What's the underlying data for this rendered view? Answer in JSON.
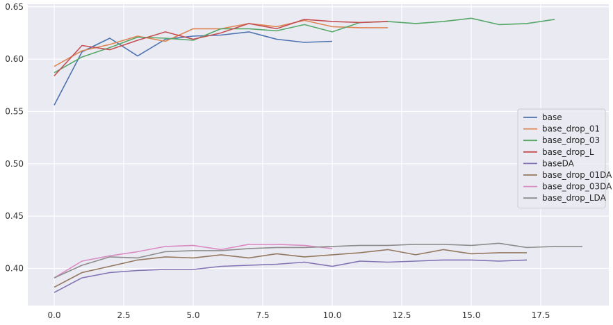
{
  "chart_data": {
    "type": "line",
    "title": "",
    "xlabel": "",
    "ylabel": "",
    "xlim": [
      -0.95,
      19.95
    ],
    "ylim": [
      0.3645,
      0.6525
    ],
    "xticks": [
      0.0,
      2.5,
      5.0,
      7.5,
      10.0,
      12.5,
      15.0,
      17.5
    ],
    "xtick_labels": [
      "0.0",
      "2.5",
      "5.0",
      "7.5",
      "10.0",
      "12.5",
      "15.0",
      "17.5"
    ],
    "yticks": [
      0.4,
      0.45,
      0.5,
      0.55,
      0.6,
      0.65
    ],
    "ytick_labels": [
      "0.40",
      "0.45",
      "0.50",
      "0.55",
      "0.60",
      "0.65"
    ],
    "grid": true,
    "legend_position": "center-right",
    "background": "#eaeaf2",
    "series": [
      {
        "name": "base",
        "color": "#4c72b0",
        "x": [
          0,
          1,
          2,
          3,
          4,
          5,
          6,
          7,
          8,
          9,
          10
        ],
        "y": [
          0.556,
          0.607,
          0.62,
          0.603,
          0.619,
          0.622,
          0.623,
          0.626,
          0.619,
          0.616,
          0.617
        ]
      },
      {
        "name": "base_drop_01",
        "color": "#dd8452",
        "x": [
          0,
          1,
          2,
          3,
          4,
          5,
          6,
          7,
          8,
          9,
          10,
          11,
          12
        ],
        "y": [
          0.593,
          0.608,
          0.614,
          0.622,
          0.617,
          0.629,
          0.629,
          0.634,
          0.631,
          0.637,
          0.631,
          0.63,
          0.63
        ]
      },
      {
        "name": "base_drop_03",
        "color": "#55a868",
        "x": [
          0,
          1,
          2,
          3,
          4,
          5,
          6,
          7,
          8,
          9,
          10,
          11,
          12,
          13,
          14,
          15,
          16,
          17,
          18
        ],
        "y": [
          0.587,
          0.602,
          0.611,
          0.621,
          0.62,
          0.618,
          0.629,
          0.629,
          0.627,
          0.633,
          0.626,
          0.635,
          0.636,
          0.634,
          0.636,
          0.639,
          0.633,
          0.634,
          0.638
        ]
      },
      {
        "name": "base_drop_L",
        "color": "#c44e52",
        "x": [
          0,
          1,
          2,
          3,
          4,
          5,
          6,
          7,
          8,
          9,
          10,
          11,
          12
        ],
        "y": [
          0.584,
          0.613,
          0.609,
          0.618,
          0.626,
          0.619,
          0.625,
          0.634,
          0.629,
          0.638,
          0.636,
          0.635,
          0.636
        ]
      },
      {
        "name": "baseDA",
        "color": "#8172b3",
        "x": [
          0,
          1,
          2,
          3,
          4,
          5,
          6,
          7,
          8,
          9,
          10,
          11,
          12,
          13,
          14,
          15,
          16,
          17
        ],
        "y": [
          0.377,
          0.391,
          0.396,
          0.398,
          0.399,
          0.399,
          0.402,
          0.403,
          0.404,
          0.406,
          0.402,
          0.407,
          0.406,
          0.407,
          0.408,
          0.408,
          0.407,
          0.408
        ]
      },
      {
        "name": "base_drop_01DA",
        "color": "#937860",
        "x": [
          0,
          1,
          2,
          3,
          4,
          5,
          6,
          7,
          8,
          9,
          10,
          11,
          12,
          13,
          14,
          15,
          16,
          17
        ],
        "y": [
          0.382,
          0.396,
          0.402,
          0.408,
          0.411,
          0.41,
          0.413,
          0.41,
          0.414,
          0.411,
          0.413,
          0.415,
          0.418,
          0.413,
          0.418,
          0.414,
          0.415,
          0.415
        ]
      },
      {
        "name": "base_drop_03DA",
        "color": "#da8bc3",
        "x": [
          0,
          1,
          2,
          3,
          4,
          5,
          6,
          7,
          8,
          9,
          10
        ],
        "y": [
          0.391,
          0.407,
          0.412,
          0.416,
          0.421,
          0.422,
          0.418,
          0.423,
          0.423,
          0.422,
          0.419
        ]
      },
      {
        "name": "base_drop_LDA",
        "color": "#8c8c8c",
        "x": [
          0,
          1,
          2,
          3,
          4,
          5,
          6,
          7,
          8,
          9,
          10,
          11,
          12,
          13,
          14,
          15,
          16,
          17,
          18,
          19
        ],
        "y": [
          0.391,
          0.403,
          0.411,
          0.41,
          0.416,
          0.417,
          0.417,
          0.419,
          0.42,
          0.42,
          0.421,
          0.422,
          0.422,
          0.423,
          0.423,
          0.422,
          0.424,
          0.42,
          0.421,
          0.421
        ]
      }
    ]
  }
}
